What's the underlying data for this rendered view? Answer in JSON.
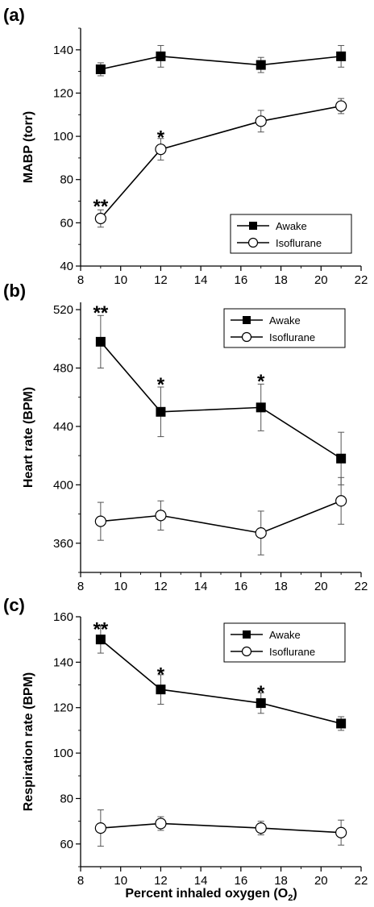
{
  "chart_data": [
    {
      "type": "line",
      "panel_label": "(a)",
      "ylabel": "MABP (torr)",
      "xlim": [
        8,
        22
      ],
      "x_ticks": [
        8,
        10,
        12,
        14,
        16,
        18,
        20,
        22
      ],
      "ylim": [
        40,
        150
      ],
      "y_ticks": [
        40,
        60,
        80,
        100,
        120,
        140
      ],
      "y_minor_step": 10,
      "legend_position": "bottom-right",
      "series": [
        {
          "name": "Awake",
          "marker": "filled-square",
          "x": [
            9,
            12,
            17,
            21
          ],
          "y": [
            131,
            137,
            133,
            137
          ],
          "err": [
            3,
            5,
            3.5,
            5
          ]
        },
        {
          "name": "Isoflurane",
          "marker": "open-circle",
          "x": [
            9,
            12,
            17,
            21
          ],
          "y": [
            62,
            94,
            107,
            114
          ],
          "err": [
            4,
            5,
            5,
            3.5
          ]
        }
      ],
      "annotations": [
        {
          "text": "**",
          "x": 9,
          "y": 69
        },
        {
          "text": "*",
          "x": 12,
          "y": 101
        }
      ]
    },
    {
      "type": "line",
      "panel_label": "(b)",
      "ylabel": "Heart rate (BPM)",
      "xlim": [
        8,
        22
      ],
      "x_ticks": [
        8,
        10,
        12,
        14,
        16,
        18,
        20,
        22
      ],
      "ylim": [
        340,
        525
      ],
      "y_ticks": [
        360,
        400,
        440,
        480,
        520
      ],
      "y_minor_step": 20,
      "legend_position": "top-right",
      "series": [
        {
          "name": "Awake",
          "marker": "filled-square",
          "x": [
            9,
            12,
            17,
            21
          ],
          "y": [
            498,
            450,
            453,
            418
          ],
          "err": [
            18,
            17,
            16,
            18
          ]
        },
        {
          "name": "Isoflurane",
          "marker": "open-circle",
          "x": [
            9,
            12,
            17,
            21
          ],
          "y": [
            375,
            379,
            367,
            389
          ],
          "err": [
            13,
            10,
            15,
            16
          ]
        }
      ],
      "annotations": [
        {
          "text": "**",
          "x": 9,
          "y": 520
        },
        {
          "text": "*",
          "x": 12,
          "y": 471
        },
        {
          "text": "*",
          "x": 17,
          "y": 473
        }
      ]
    },
    {
      "type": "line",
      "panel_label": "(c)",
      "ylabel": "Respiration rate (BPM)",
      "xlabel": "Percent inhaled oxygen (O",
      "xlabel_subscript": "2",
      "xlabel_suffix": ")",
      "xlim": [
        8,
        22
      ],
      "x_ticks": [
        8,
        10,
        12,
        14,
        16,
        18,
        20,
        22
      ],
      "ylim": [
        50,
        160
      ],
      "y_ticks": [
        60,
        80,
        100,
        120,
        140,
        160
      ],
      "y_minor_step": 10,
      "legend_position": "top-right",
      "series": [
        {
          "name": "Awake",
          "marker": "filled-square",
          "x": [
            9,
            12,
            17,
            21
          ],
          "y": [
            150,
            128,
            122,
            113
          ],
          "err": [
            6,
            6.5,
            4.5,
            3
          ]
        },
        {
          "name": "Isoflurane",
          "marker": "open-circle",
          "x": [
            9,
            12,
            17,
            21
          ],
          "y": [
            67,
            69,
            67,
            65
          ],
          "err": [
            8,
            3,
            3,
            5.5
          ]
        }
      ],
      "annotations": [
        {
          "text": "**",
          "x": 9,
          "y": 156
        },
        {
          "text": "*",
          "x": 12,
          "y": 136
        },
        {
          "text": "*",
          "x": 17,
          "y": 128
        }
      ]
    }
  ]
}
